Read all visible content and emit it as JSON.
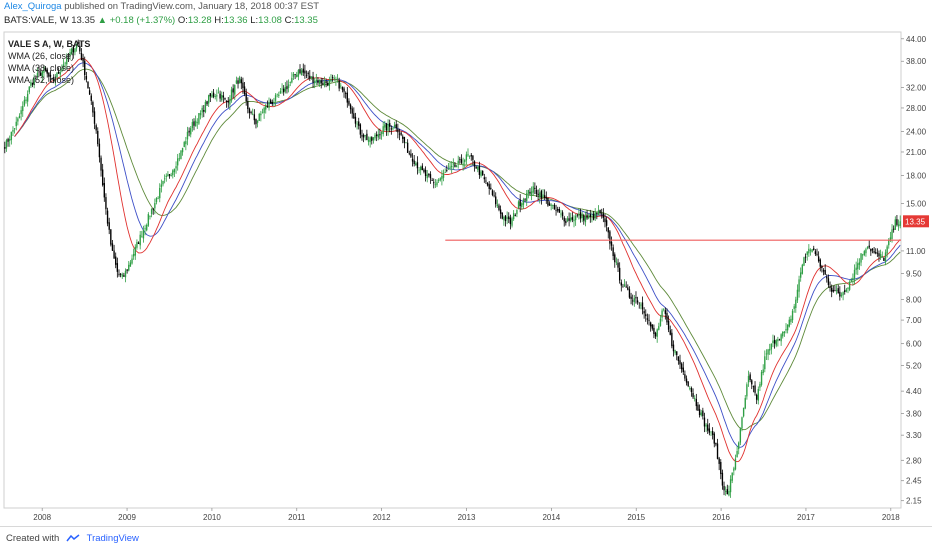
{
  "header": {
    "author": "Alex_Quiroga",
    "published": "published on TradingView.com, January 18, 2018 00:37 EST"
  },
  "info": {
    "symbol": "BATS:VALE, W",
    "last": "13.35",
    "change_arrow": "▲",
    "change": "+0.18 (+1.37%)",
    "o_label": "O:",
    "o": "13.28",
    "h_label": "H:",
    "h": "13.36",
    "l_label": "L:",
    "l": "13.08",
    "c_label": "C:",
    "c": "13.35"
  },
  "legend": {
    "line1": "VALE S A, W, BATS",
    "line2": "WMA (26, close)",
    "line3": "WMA (38, close)",
    "line4": "WMA (52, close)"
  },
  "footer": {
    "created_with": "Created with",
    "brand": "TradingView"
  },
  "colors": {
    "up": "#2e9e44",
    "down": "#000000",
    "wma26": "#e0312f",
    "wma38": "#3d4fc7",
    "wma52": "#5e8a3a",
    "hline": "#ef5d5d",
    "price_badge": "#e53935"
  },
  "chart_data": {
    "type": "candlestick",
    "scale": "log",
    "y_ticks": [
      44.0,
      38.0,
      32.0,
      28.0,
      24.0,
      21.0,
      18.0,
      15.0,
      13.35,
      11.0,
      9.5,
      8.0,
      7.0,
      6.0,
      5.2,
      4.4,
      3.8,
      3.3,
      2.8,
      2.45,
      2.15
    ],
    "y_tick_labels": [
      "44.00",
      "38.00",
      "32.00",
      "28.00",
      "24.00",
      "21.00",
      "18.00",
      "15.00",
      "13.35",
      "11.00",
      "9.50",
      "8.00",
      "7.00",
      "6.00",
      "5.20",
      "4.40",
      "3.80",
      "3.30",
      "2.80",
      "2.45",
      "2.15"
    ],
    "x_labels": [
      "2008",
      "2009",
      "2010",
      "2011",
      "2012",
      "2013",
      "2014",
      "2015",
      "2016",
      "2017",
      "2018"
    ],
    "x_label_years": [
      2008,
      2009,
      2010,
      2011,
      2012,
      2013,
      2014,
      2015,
      2016,
      2017,
      2018
    ],
    "last_price": 13.35,
    "horizontal_line": {
      "value": 11.8,
      "from_year": 2012.75
    },
    "price_path": [
      [
        2007.55,
        22.0
      ],
      [
        2007.7,
        26.0
      ],
      [
        2007.85,
        33.0
      ],
      [
        2008.0,
        36.0
      ],
      [
        2008.1,
        33.0
      ],
      [
        2008.25,
        38.0
      ],
      [
        2008.4,
        43.0
      ],
      [
        2008.5,
        34.0
      ],
      [
        2008.62,
        24.0
      ],
      [
        2008.72,
        15.0
      ],
      [
        2008.8,
        11.0
      ],
      [
        2008.87,
        9.5
      ],
      [
        2008.93,
        9.2
      ],
      [
        2009.0,
        10.0
      ],
      [
        2009.1,
        11.5
      ],
      [
        2009.25,
        14.0
      ],
      [
        2009.4,
        17.0
      ],
      [
        2009.5,
        18.5
      ],
      [
        2009.6,
        20.5
      ],
      [
        2009.72,
        24.5
      ],
      [
        2009.85,
        27.0
      ],
      [
        2009.95,
        30.0
      ],
      [
        2010.05,
        31.0
      ],
      [
        2010.15,
        29.0
      ],
      [
        2010.3,
        34.0
      ],
      [
        2010.4,
        28.0
      ],
      [
        2010.5,
        25.5
      ],
      [
        2010.6,
        28.0
      ],
      [
        2010.75,
        30.0
      ],
      [
        2010.9,
        33.0
      ],
      [
        2011.0,
        36.0
      ],
      [
        2011.15,
        34.0
      ],
      [
        2011.3,
        33.0
      ],
      [
        2011.45,
        33.5
      ],
      [
        2011.6,
        29.0
      ],
      [
        2011.72,
        24.0
      ],
      [
        2011.85,
        22.5
      ],
      [
        2012.0,
        24.5
      ],
      [
        2012.15,
        25.0
      ],
      [
        2012.3,
        21.0
      ],
      [
        2012.45,
        18.5
      ],
      [
        2012.6,
        17.0
      ],
      [
        2012.75,
        18.5
      ],
      [
        2012.9,
        19.5
      ],
      [
        2013.0,
        20.5
      ],
      [
        2013.1,
        19.0
      ],
      [
        2013.25,
        16.5
      ],
      [
        2013.4,
        13.8
      ],
      [
        2013.5,
        13.2
      ],
      [
        2013.6,
        15.0
      ],
      [
        2013.75,
        16.5
      ],
      [
        2013.85,
        16.0
      ],
      [
        2014.0,
        14.5
      ],
      [
        2014.15,
        13.5
      ],
      [
        2014.3,
        13.8
      ],
      [
        2014.45,
        13.6
      ],
      [
        2014.55,
        14.2
      ],
      [
        2014.62,
        13.0
      ],
      [
        2014.7,
        11.0
      ],
      [
        2014.8,
        9.0
      ],
      [
        2014.9,
        8.2
      ],
      [
        2015.0,
        8.0
      ],
      [
        2015.1,
        7.3
      ],
      [
        2015.2,
        6.2
      ],
      [
        2015.3,
        7.5
      ],
      [
        2015.4,
        6.0
      ],
      [
        2015.5,
        5.2
      ],
      [
        2015.6,
        4.6
      ],
      [
        2015.7,
        4.0
      ],
      [
        2015.8,
        3.5
      ],
      [
        2015.9,
        3.2
      ],
      [
        2016.0,
        2.4
      ],
      [
        2016.05,
        2.2
      ],
      [
        2016.12,
        2.6
      ],
      [
        2016.2,
        3.3
      ],
      [
        2016.3,
        4.8
      ],
      [
        2016.4,
        4.2
      ],
      [
        2016.5,
        5.5
      ],
      [
        2016.62,
        6.2
      ],
      [
        2016.75,
        6.5
      ],
      [
        2016.85,
        7.8
      ],
      [
        2016.95,
        10.5
      ],
      [
        2017.05,
        11.3
      ],
      [
        2017.15,
        10.0
      ],
      [
        2017.28,
        8.6
      ],
      [
        2017.38,
        8.2
      ],
      [
        2017.5,
        9.0
      ],
      [
        2017.6,
        10.3
      ],
      [
        2017.7,
        11.5
      ],
      [
        2017.8,
        10.7
      ],
      [
        2017.9,
        10.5
      ],
      [
        2018.0,
        12.5
      ],
      [
        2018.04,
        13.35
      ]
    ]
  }
}
